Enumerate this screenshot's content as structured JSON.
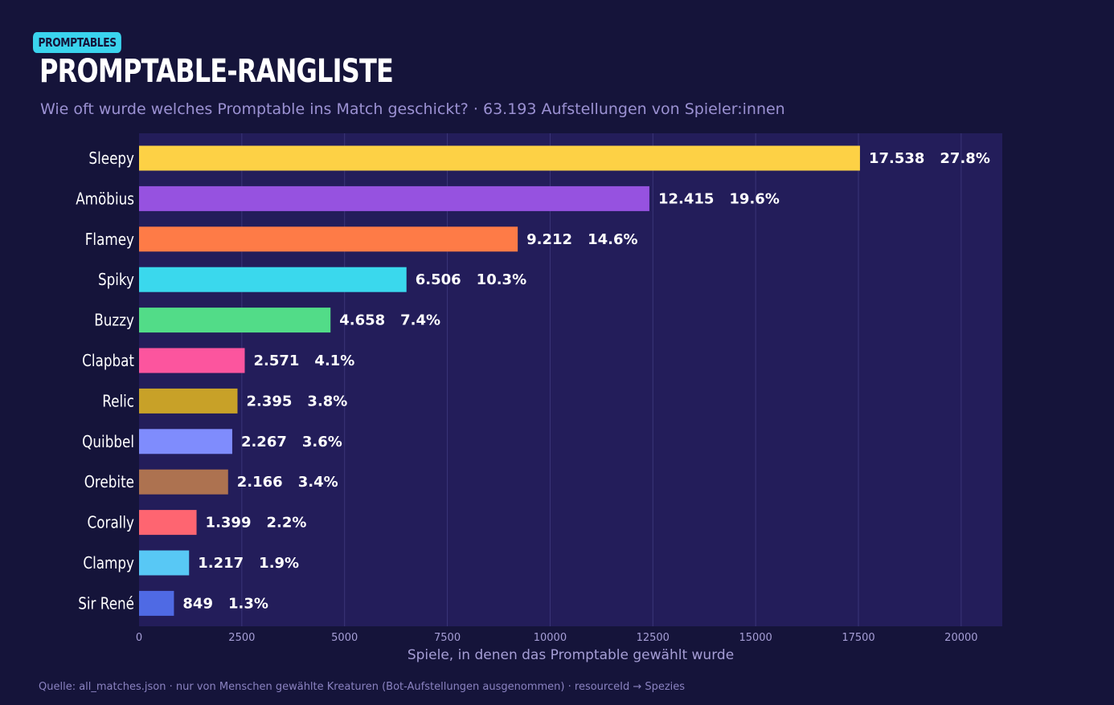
{
  "header": {
    "badge": "PROMPTABLES",
    "title": "PROMPTABLE-RANGLISTE",
    "subtitle": "Wie oft wurde welches Promptable ins Match geschickt? · 63.193 Aufstellungen von Spieler:innen"
  },
  "footer": {
    "source": "Quelle: all_matches.json · nur von Menschen gewählte Kreaturen (Bot-Aufstellungen ausgenommen) · resourceId → Spezies"
  },
  "chart_data": {
    "type": "bar",
    "orientation": "horizontal",
    "title": "PROMPTABLE-RANGLISTE",
    "xlabel": "Spiele, in denen das Promptable gewählt wurde",
    "ylabel": "",
    "xlim": [
      0,
      21000
    ],
    "grid": true,
    "xticks": [
      0,
      2500,
      5000,
      7500,
      10000,
      12500,
      15000,
      17500,
      20000
    ],
    "categories": [
      "Sleepy",
      "Amöbius",
      "Flamey",
      "Spiky",
      "Buzzy",
      "Clapbat",
      "Relic",
      "Quibbel",
      "Orebite",
      "Corally",
      "Clampy",
      "Sir René"
    ],
    "values": [
      17538,
      12415,
      9212,
      6506,
      4658,
      2571,
      2395,
      2267,
      2166,
      1399,
      1217,
      849
    ],
    "value_labels": [
      "17.538",
      "12.415",
      "9.212",
      "6.506",
      "4.658",
      "2.571",
      "2.395",
      "2.267",
      "2.166",
      "1.399",
      "1.217",
      "849"
    ],
    "percent_labels": [
      "27.8%",
      "19.6%",
      "14.6%",
      "10.3%",
      "7.4%",
      "4.1%",
      "3.8%",
      "3.6%",
      "3.4%",
      "2.2%",
      "1.9%",
      "1.3%"
    ],
    "colors": [
      "#fdd145",
      "#9652e0",
      "#fe7b47",
      "#3ad8ed",
      "#52dc88",
      "#fc559e",
      "#c8a128",
      "#7f8cfd",
      "#ad7250",
      "#fe6571",
      "#58c8f5",
      "#4f6ae4"
    ]
  }
}
